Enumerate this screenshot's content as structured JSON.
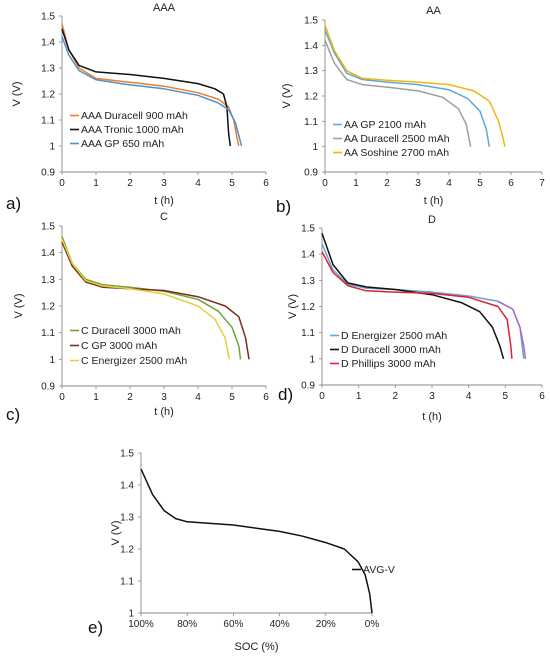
{
  "colors": {
    "orange": "#ed7d31",
    "black": "#111111",
    "blue": "#4f8fcb",
    "gray": "#9e9e9e",
    "lightblue": "#5ea7d6",
    "gold": "#f2b70f",
    "olive": "#71a13a",
    "brown": "#7b2e1b",
    "yellow": "#e3d23c",
    "red": "#e0222f",
    "purple": "#b066c8"
  },
  "chart_data": [
    {
      "id": "a",
      "panel_label": "a)",
      "title": "AAA",
      "type": "line",
      "xlabel": "t (h)",
      "ylabel": "V (V)",
      "xlim": [
        0,
        6
      ],
      "ylim": [
        0.9,
        1.5
      ],
      "xticks": [
        "0",
        "1",
        "2",
        "3",
        "4",
        "5",
        "6"
      ],
      "yticks": [
        "0.9",
        "1",
        "1.1",
        "1.2",
        "1.3",
        "1.4",
        "1.5"
      ],
      "series": [
        {
          "name": "AAA Duracell 900 mAh",
          "color": "#ed7d31",
          "points": [
            [
              0,
              1.47
            ],
            [
              0.2,
              1.37
            ],
            [
              0.5,
              1.3
            ],
            [
              1,
              1.26
            ],
            [
              2,
              1.245
            ],
            [
              3,
              1.23
            ],
            [
              4,
              1.205
            ],
            [
              4.6,
              1.18
            ],
            [
              4.9,
              1.15
            ],
            [
              5.05,
              1.1
            ],
            [
              5.15,
              1.03
            ],
            [
              5.2,
              1.0
            ]
          ]
        },
        {
          "name": "AAA Tronic 1000 mAh",
          "color": "#111111",
          "points": [
            [
              0,
              1.45
            ],
            [
              0.2,
              1.37
            ],
            [
              0.5,
              1.31
            ],
            [
              1,
              1.285
            ],
            [
              2,
              1.275
            ],
            [
              3,
              1.26
            ],
            [
              4,
              1.24
            ],
            [
              4.5,
              1.22
            ],
            [
              4.75,
              1.2
            ],
            [
              4.85,
              1.15
            ],
            [
              4.9,
              1.05
            ],
            [
              4.95,
              1.0
            ]
          ]
        },
        {
          "name": "AAA GP 650 mAh",
          "color": "#4f8fcb",
          "points": [
            [
              0,
              1.42
            ],
            [
              0.2,
              1.35
            ],
            [
              0.5,
              1.29
            ],
            [
              1,
              1.255
            ],
            [
              2,
              1.235
            ],
            [
              3,
              1.22
            ],
            [
              4,
              1.195
            ],
            [
              4.6,
              1.165
            ],
            [
              4.9,
              1.14
            ],
            [
              5.1,
              1.09
            ],
            [
              5.22,
              1.03
            ],
            [
              5.28,
              1.0
            ]
          ]
        }
      ]
    },
    {
      "id": "b",
      "panel_label": "b)",
      "title": "AA",
      "type": "line",
      "xlabel": "t (h)",
      "ylabel": "V (V)",
      "xlim": [
        0,
        7
      ],
      "ylim": [
        0.9,
        1.5
      ],
      "xticks": [
        "0",
        "1",
        "2",
        "3",
        "4",
        "5",
        "6",
        "7"
      ],
      "yticks": [
        "0.9",
        "1",
        "1.1",
        "1.2",
        "1.3",
        "1.4",
        "1.5"
      ],
      "series": [
        {
          "name": "AA GP 2100 mAh",
          "color": "#5ea7d6",
          "points": [
            [
              0,
              1.46
            ],
            [
              0.3,
              1.37
            ],
            [
              0.7,
              1.29
            ],
            [
              1.2,
              1.265
            ],
            [
              2,
              1.255
            ],
            [
              3,
              1.245
            ],
            [
              4,
              1.225
            ],
            [
              4.6,
              1.19
            ],
            [
              5,
              1.14
            ],
            [
              5.2,
              1.07
            ],
            [
              5.3,
              1.0
            ]
          ]
        },
        {
          "name": "AA Duracell 2500 mAh",
          "color": "#9e9e9e",
          "points": [
            [
              0,
              1.42
            ],
            [
              0.3,
              1.33
            ],
            [
              0.7,
              1.265
            ],
            [
              1.2,
              1.245
            ],
            [
              2,
              1.235
            ],
            [
              3,
              1.22
            ],
            [
              3.8,
              1.195
            ],
            [
              4.3,
              1.15
            ],
            [
              4.55,
              1.09
            ],
            [
              4.7,
              1.0
            ]
          ]
        },
        {
          "name": "AA Soshine 2700 mAh",
          "color": "#f2b70f",
          "points": [
            [
              0,
              1.48
            ],
            [
              0.3,
              1.38
            ],
            [
              0.7,
              1.3
            ],
            [
              1.2,
              1.27
            ],
            [
              2,
              1.262
            ],
            [
              3,
              1.255
            ],
            [
              4,
              1.245
            ],
            [
              4.8,
              1.22
            ],
            [
              5.3,
              1.18
            ],
            [
              5.6,
              1.1
            ],
            [
              5.75,
              1.03
            ],
            [
              5.8,
              1.0
            ]
          ]
        }
      ]
    },
    {
      "id": "c",
      "panel_label": "c)",
      "title": "C",
      "type": "line",
      "xlabel": "t (h)",
      "ylabel": "V (V)",
      "xlim": [
        0,
        6
      ],
      "ylim": [
        0.9,
        1.5
      ],
      "xticks": [
        "0",
        "1",
        "2",
        "3",
        "4",
        "5",
        "6"
      ],
      "yticks": [
        "0.9",
        "1",
        "1.1",
        "1.2",
        "1.3",
        "1.4",
        "1.5"
      ],
      "series": [
        {
          "name": "C Duracell 3000 mAh",
          "color": "#71a13a",
          "points": [
            [
              0,
              1.46
            ],
            [
              0.3,
              1.36
            ],
            [
              0.7,
              1.3
            ],
            [
              1.2,
              1.28
            ],
            [
              2,
              1.27
            ],
            [
              3,
              1.255
            ],
            [
              4,
              1.225
            ],
            [
              4.6,
              1.18
            ],
            [
              5,
              1.12
            ],
            [
              5.2,
              1.05
            ],
            [
              5.25,
              1.0
            ]
          ]
        },
        {
          "name": "C GP 3000 mAh",
          "color": "#7b2e1b",
          "points": [
            [
              0,
              1.44
            ],
            [
              0.3,
              1.35
            ],
            [
              0.7,
              1.29
            ],
            [
              1.2,
              1.27
            ],
            [
              2,
              1.265
            ],
            [
              3,
              1.258
            ],
            [
              4,
              1.235
            ],
            [
              4.8,
              1.2
            ],
            [
              5.2,
              1.16
            ],
            [
              5.4,
              1.08
            ],
            [
              5.5,
              1.0
            ]
          ]
        },
        {
          "name": "C Energizer 2500 mAh",
          "color": "#e3d23c",
          "points": [
            [
              0,
              1.45
            ],
            [
              0.3,
              1.36
            ],
            [
              0.7,
              1.295
            ],
            [
              1.2,
              1.275
            ],
            [
              2,
              1.265
            ],
            [
              3,
              1.245
            ],
            [
              4,
              1.2
            ],
            [
              4.5,
              1.15
            ],
            [
              4.8,
              1.08
            ],
            [
              4.92,
              1.0
            ]
          ]
        }
      ]
    },
    {
      "id": "d",
      "panel_label": "d)",
      "title": "D",
      "type": "line",
      "xlabel": "t (h)",
      "ylabel": "V (V)",
      "xlim": [
        0,
        6
      ],
      "ylim": [
        0.9,
        1.5
      ],
      "xticks": [
        "0",
        "1",
        "2",
        "3",
        "4",
        "5",
        "6"
      ],
      "yticks": [
        "0.9",
        "1",
        "1.1",
        "1.2",
        "1.3",
        "1.4",
        "1.5"
      ],
      "series": [
        {
          "name": "D Energizer 2500 mAh",
          "color": "#5ea7d6",
          "points": [
            [
              0,
              1.44
            ],
            [
              0.3,
              1.34
            ],
            [
              0.7,
              1.285
            ],
            [
              1.2,
              1.27
            ],
            [
              2,
              1.265
            ],
            [
              3,
              1.255
            ],
            [
              4,
              1.24
            ],
            [
              4.8,
              1.22
            ],
            [
              5.2,
              1.19
            ],
            [
              5.4,
              1.12
            ],
            [
              5.5,
              1.0
            ]
          ]
        },
        {
          "name": "D Duracell 3000 mAh",
          "color": "#111111",
          "points": [
            [
              0,
              1.48
            ],
            [
              0.3,
              1.36
            ],
            [
              0.7,
              1.29
            ],
            [
              1.2,
              1.275
            ],
            [
              2,
              1.265
            ],
            [
              3,
              1.245
            ],
            [
              3.8,
              1.215
            ],
            [
              4.3,
              1.18
            ],
            [
              4.65,
              1.12
            ],
            [
              4.85,
              1.05
            ],
            [
              4.95,
              1.0
            ]
          ]
        },
        {
          "name": "D Phillips 3000 mAh",
          "color": "#e0222f",
          "points": [
            [
              0,
              1.41
            ],
            [
              0.3,
              1.33
            ],
            [
              0.7,
              1.28
            ],
            [
              1.2,
              1.26
            ],
            [
              2,
              1.255
            ],
            [
              3,
              1.25
            ],
            [
              4,
              1.235
            ],
            [
              4.8,
              1.2
            ],
            [
              5.05,
              1.15
            ],
            [
              5.15,
              1.05
            ],
            [
              5.18,
              1.0
            ]
          ]
        },
        {
          "name": "",
          "color": "#b066c8",
          "points": [
            [
              4.8,
              1.22
            ],
            [
              5.2,
              1.19
            ],
            [
              5.4,
              1.12
            ],
            [
              5.5,
              1.05
            ],
            [
              5.55,
              1.0
            ]
          ]
        }
      ]
    },
    {
      "id": "e",
      "panel_label": "e)",
      "title": "",
      "type": "line",
      "xlabel": "SOC (%)",
      "ylabel": "V (V)",
      "xlim": [
        100,
        0
      ],
      "ylim": [
        1.0,
        1.5
      ],
      "xticks": [
        "100%",
        "80%",
        "60%",
        "40%",
        "20%",
        "0%"
      ],
      "yticks": [
        "1",
        "1.1",
        "1.2",
        "1.3",
        "1.4",
        "1.5"
      ],
      "series": [
        {
          "name": "AVG-V",
          "color": "#111111",
          "points": [
            [
              100,
              1.45
            ],
            [
              95,
              1.37
            ],
            [
              90,
              1.32
            ],
            [
              85,
              1.295
            ],
            [
              80,
              1.285
            ],
            [
              70,
              1.28
            ],
            [
              60,
              1.275
            ],
            [
              50,
              1.265
            ],
            [
              40,
              1.255
            ],
            [
              30,
              1.24
            ],
            [
              20,
              1.22
            ],
            [
              12,
              1.2
            ],
            [
              6,
              1.16
            ],
            [
              3,
              1.12
            ],
            [
              1,
              1.06
            ],
            [
              0,
              1.0
            ]
          ]
        }
      ]
    }
  ]
}
